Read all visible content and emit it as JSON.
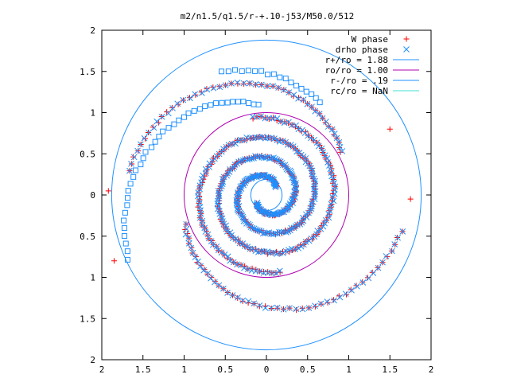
{
  "chart_data": {
    "type": "scatter",
    "title": "m2/n1.5/q1.5/r-+.10-j53/M50.0/512",
    "xlabel": "",
    "ylabel": "",
    "xlim": [
      -2,
      2
    ],
    "ylim": [
      -2,
      2
    ],
    "x_tick_values": [
      -2,
      -1.5,
      -1,
      -0.5,
      0,
      0.5,
      1,
      1.5,
      2
    ],
    "x_tick_labels": [
      "2",
      "1.5",
      "1",
      "0.5",
      "0",
      "0.5",
      "1",
      "1.5",
      "2"
    ],
    "y_tick_values": [
      2,
      1.5,
      1,
      0.5,
      0,
      -0.5,
      -1,
      -1.5,
      -2
    ],
    "y_tick_labels": [
      "2",
      "1.5",
      "1",
      "0.5",
      "0",
      "0.5",
      "1",
      "1.5",
      "2"
    ],
    "grid": false,
    "legend_position": "top-right",
    "series": [
      {
        "name": "W phase",
        "kind": "points",
        "marker": "plus",
        "color": "#ff0000",
        "arms": [
          {
            "r0": 0.16,
            "r1": 0.95,
            "th0": 40,
            "th1": 640
          },
          {
            "r0": 0.16,
            "r1": 0.95,
            "th0": 220,
            "th1": 820
          },
          {
            "r0": 1.05,
            "r1": 1.7,
            "th0": 30,
            "th1": 170
          },
          {
            "r0": 1.05,
            "r1": 1.7,
            "th0": 200,
            "th1": 345
          }
        ],
        "isolated": [
          [
            -1.92,
            0.05
          ],
          [
            1.75,
            -0.05
          ],
          [
            1.5,
            0.8
          ],
          [
            -1.85,
            -0.8
          ]
        ]
      },
      {
        "name": "drho phase",
        "kind": "points",
        "marker": "cross",
        "color": "#1e90ff",
        "arms": [
          {
            "r0": 0.16,
            "r1": 0.95,
            "th0": 40,
            "th1": 640
          },
          {
            "r0": 0.16,
            "r1": 0.95,
            "th0": 220,
            "th1": 820
          },
          {
            "r0": 1.05,
            "r1": 1.7,
            "th0": 30,
            "th1": 170
          },
          {
            "r0": 1.05,
            "r1": 1.7,
            "th0": 200,
            "th1": 345
          }
        ]
      },
      {
        "name": "",
        "kind": "points",
        "marker": "square",
        "color": "#1e90ff",
        "arms": [
          {
            "r0": 1.1,
            "r1": 1.85,
            "th0": 95,
            "th1": 205
          },
          {
            "r0": 1.3,
            "r1": 1.6,
            "th0": 60,
            "th1": 110
          }
        ]
      },
      {
        "name": "r+/ro = 1.88",
        "kind": "circle",
        "radius": 1.88,
        "color": "#1e90ff"
      },
      {
        "name": "ro/ro = 1.00",
        "kind": "circle",
        "radius": 1.0,
        "color": "#b000b0"
      },
      {
        "name": "r-/ro = .19",
        "kind": "circle",
        "radius": 0.19,
        "color": "#1e90ff"
      },
      {
        "name": "rc/ro = NaN",
        "kind": "circle",
        "radius": null,
        "color": "#40e0d0"
      }
    ]
  }
}
